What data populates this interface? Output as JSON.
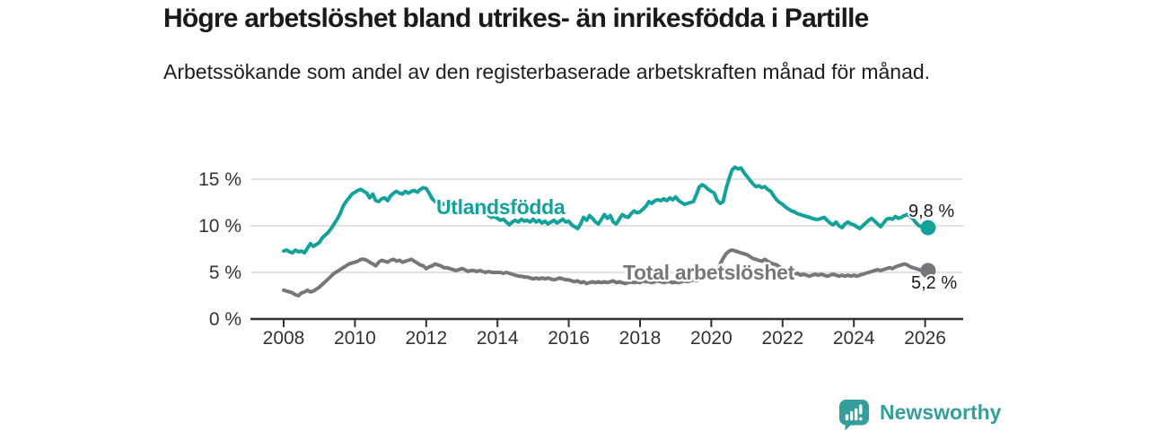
{
  "header": {
    "title": "Högre arbetslöshet bland utrikes- än inrikesfödda i Partille",
    "subtitle": "Arbetssökande som andel av den registerbaserade arbetskraften månad för månad."
  },
  "branding": {
    "name": "Newsworthy",
    "logo_icon": "bar-chart-speech-bubble-icon"
  },
  "colors": {
    "foreign_born_line": "#12a29b",
    "total_line": "#76767b",
    "grid": "#d9d9d9",
    "axis": "#2f2f2f",
    "tick_text": "#333333",
    "value_text": "#1b1b1b",
    "brand_teal": "#339e9b",
    "background": "#ffffff"
  },
  "chart_data": {
    "type": "line",
    "title": "Högre arbetslöshet bland utrikes- än inrikesfödda i Partille",
    "subtitle": "Arbetssökande som andel av den registerbaserade arbetskraften månad för månad.",
    "xlabel": "",
    "ylabel": "",
    "unit": "%",
    "grid": true,
    "legend_position": "inline-labels",
    "x_start_year": 2008,
    "points_per_year": 12,
    "x_range_years": [
      2008,
      2026.08
    ],
    "ylim": [
      0,
      17
    ],
    "y_ticks": [
      {
        "value": 0,
        "label": "0 %"
      },
      {
        "value": 5,
        "label": "5 %"
      },
      {
        "value": 10,
        "label": "10 %"
      },
      {
        "value": 15,
        "label": "15 %"
      }
    ],
    "x_ticks": [
      {
        "year": 2008,
        "label": "2008"
      },
      {
        "year": 2010,
        "label": "2010"
      },
      {
        "year": 2012,
        "label": "2012"
      },
      {
        "year": 2014,
        "label": "2014"
      },
      {
        "year": 2016,
        "label": "2016"
      },
      {
        "year": 2018,
        "label": "2018"
      },
      {
        "year": 2020,
        "label": "2020"
      },
      {
        "year": 2022,
        "label": "2022"
      },
      {
        "year": 2024,
        "label": "2024"
      },
      {
        "year": 2026,
        "label": "2026"
      }
    ],
    "series": [
      {
        "name": "Utlandsfödda",
        "color": "#12a29b",
        "end_label": "9,8 %",
        "end_value": 9.8,
        "values": [
          7.3,
          7.4,
          7.2,
          7.1,
          7.4,
          7.2,
          7.3,
          7.1,
          7.6,
          8.1,
          7.8,
          8.0,
          8.2,
          8.7,
          9.0,
          9.3,
          9.7,
          10.2,
          10.7,
          11.3,
          12.1,
          12.6,
          13.0,
          13.4,
          13.6,
          13.8,
          13.9,
          13.7,
          13.5,
          13.0,
          13.4,
          12.7,
          12.6,
          12.9,
          13.0,
          12.7,
          13.2,
          13.5,
          13.7,
          13.5,
          13.4,
          13.7,
          13.5,
          13.7,
          13.8,
          13.6,
          13.9,
          14.1,
          14.0,
          13.5,
          12.9,
          12.6,
          12.4,
          12.5,
          12.3,
          12.4,
          12.2,
          12.3,
          12.1,
          12.2,
          12.0,
          11.8,
          11.9,
          11.7,
          11.5,
          11.6,
          11.4,
          11.2,
          11.3,
          11.1,
          10.9,
          11.0,
          10.8,
          10.6,
          10.7,
          10.4,
          10.1,
          10.4,
          10.6,
          10.4,
          10.7,
          10.5,
          10.6,
          10.4,
          10.7,
          10.4,
          10.6,
          10.3,
          10.5,
          10.2,
          10.4,
          10.6,
          10.3,
          10.5,
          10.7,
          10.4,
          10.5,
          10.1,
          9.9,
          9.7,
          10.2,
          10.9,
          10.6,
          11.1,
          10.8,
          10.4,
          10.2,
          10.7,
          11.2,
          10.8,
          11.1,
          10.4,
          10.2,
          10.7,
          11.2,
          11.0,
          10.9,
          11.3,
          11.6,
          11.4,
          11.5,
          11.8,
          12.1,
          12.6,
          12.4,
          12.7,
          12.8,
          12.7,
          12.9,
          12.7,
          13.0,
          12.8,
          13.1,
          12.7,
          12.5,
          12.3,
          12.4,
          12.5,
          12.6,
          13.4,
          14.2,
          14.4,
          14.2,
          13.9,
          13.7,
          13.5,
          12.7,
          12.4,
          12.6,
          14.0,
          15.1,
          16.0,
          16.3,
          16.1,
          16.2,
          15.7,
          15.3,
          14.9,
          14.5,
          14.2,
          14.3,
          14.1,
          14.2,
          13.9,
          13.7,
          13.2,
          12.8,
          12.5,
          12.3,
          12.0,
          11.8,
          11.6,
          11.5,
          11.3,
          11.2,
          11.1,
          11.0,
          10.9,
          10.8,
          10.7,
          10.7,
          10.8,
          10.9,
          10.6,
          10.3,
          10.1,
          10.4,
          10.0,
          9.8,
          10.2,
          10.4,
          10.2,
          10.1,
          9.9,
          9.7,
          10.0,
          10.3,
          10.6,
          10.8,
          10.5,
          10.2,
          9.9,
          10.3,
          10.7,
          10.8,
          10.7,
          11.0,
          10.8,
          10.9,
          11.1,
          11.2,
          11.0,
          10.7,
          10.3,
          10.0,
          9.9,
          9.8,
          9.8
        ]
      },
      {
        "name": "Total arbetslöshet",
        "color": "#76767b",
        "end_label": "5,2 %",
        "end_value": 5.2,
        "values": [
          3.1,
          3.0,
          2.9,
          2.8,
          2.6,
          2.5,
          2.8,
          2.9,
          3.1,
          2.9,
          3.0,
          3.2,
          3.4,
          3.7,
          4.0,
          4.3,
          4.6,
          4.9,
          5.1,
          5.3,
          5.5,
          5.7,
          5.9,
          6.0,
          6.1,
          6.2,
          6.4,
          6.4,
          6.3,
          6.1,
          5.9,
          5.7,
          6.1,
          6.3,
          6.2,
          6.1,
          6.3,
          6.4,
          6.2,
          6.3,
          6.1,
          6.2,
          6.3,
          6.4,
          6.2,
          6.0,
          5.8,
          5.7,
          5.4,
          5.6,
          5.7,
          5.9,
          5.8,
          5.7,
          5.5,
          5.5,
          5.4,
          5.3,
          5.2,
          5.3,
          5.4,
          5.3,
          5.1,
          5.2,
          5.2,
          5.1,
          5.2,
          5.1,
          5.0,
          5.1,
          5.0,
          5.0,
          5.0,
          5.0,
          4.9,
          5.0,
          4.9,
          4.8,
          4.7,
          4.6,
          4.6,
          4.5,
          4.5,
          4.4,
          4.3,
          4.4,
          4.3,
          4.4,
          4.3,
          4.4,
          4.3,
          4.2,
          4.3,
          4.4,
          4.3,
          4.2,
          4.2,
          4.1,
          4.0,
          4.1,
          3.9,
          4.0,
          3.8,
          3.9,
          4.0,
          3.9,
          4.0,
          3.9,
          4.0,
          3.9,
          4.0,
          4.1,
          3.9,
          4.0,
          3.9,
          3.8,
          3.9,
          4.0,
          3.9,
          4.0,
          3.9,
          4.1,
          4.0,
          4.0,
          3.9,
          4.0,
          4.1,
          4.0,
          3.9,
          4.0,
          4.0,
          3.9,
          4.0,
          3.9,
          4.0,
          4.1,
          4.0,
          4.1,
          4.2,
          4.1,
          4.2,
          4.3,
          4.4,
          4.5,
          4.6,
          4.8,
          5.2,
          5.9,
          6.5,
          7.0,
          7.3,
          7.4,
          7.3,
          7.2,
          7.1,
          7.0,
          6.9,
          6.7,
          6.5,
          6.4,
          6.3,
          6.2,
          6.4,
          6.2,
          6.0,
          5.9,
          5.8,
          5.6,
          5.4,
          5.2,
          5.0,
          4.9,
          4.8,
          4.9,
          4.7,
          4.8,
          4.7,
          4.6,
          4.7,
          4.8,
          4.7,
          4.8,
          4.7,
          4.6,
          4.7,
          4.8,
          4.7,
          4.6,
          4.7,
          4.6,
          4.7,
          4.6,
          4.7,
          4.6,
          4.7,
          4.8,
          4.9,
          5.0,
          5.1,
          5.2,
          5.3,
          5.2,
          5.3,
          5.4,
          5.5,
          5.4,
          5.6,
          5.7,
          5.8,
          5.9,
          5.8,
          5.6,
          5.5,
          5.4,
          5.3,
          5.2,
          5.2,
          5.2
        ]
      }
    ]
  }
}
